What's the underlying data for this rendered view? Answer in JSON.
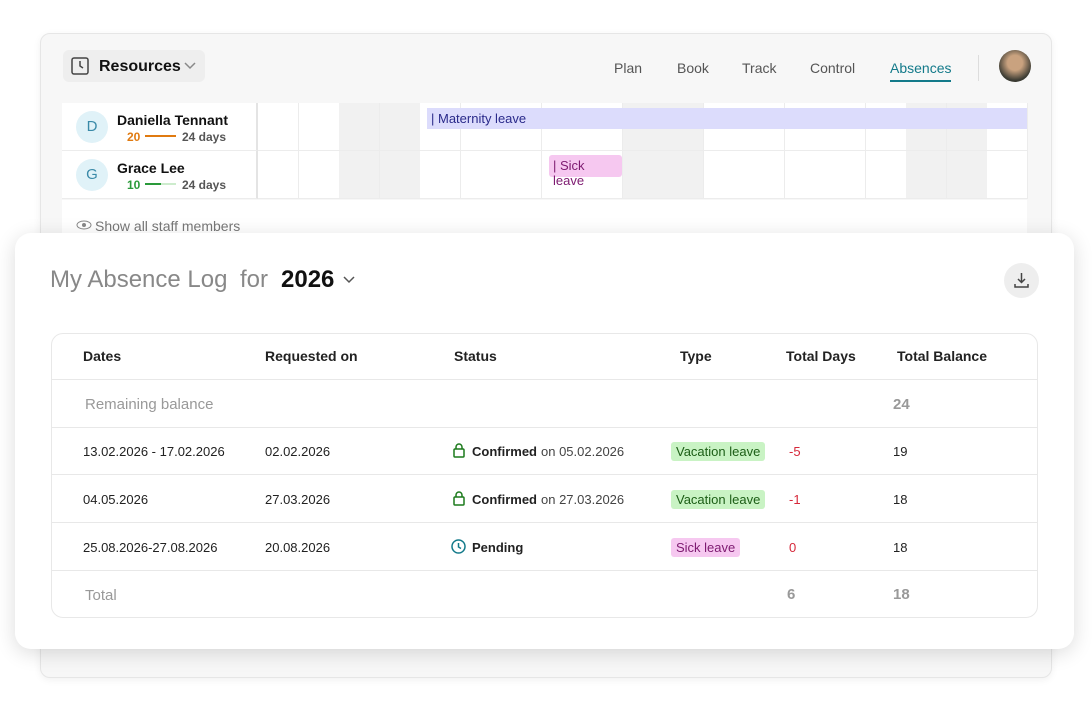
{
  "nav": {
    "brand": "Resources",
    "tabs": [
      "Plan",
      "Book",
      "Track",
      "Control",
      "Absences"
    ]
  },
  "staff": [
    {
      "initial": "D",
      "name": "Daniella Tennant",
      "used": "20",
      "total": "24 days"
    },
    {
      "initial": "G",
      "name": "Grace Lee",
      "used": "10",
      "total": "24 days"
    }
  ],
  "calendar": {
    "bars": [
      "| Maternity leave",
      "| Sick leave"
    ],
    "show_all": "Show all staff members"
  },
  "log": {
    "title": "My Absence Log",
    "for": "for",
    "year": "2026"
  },
  "table": {
    "headers": [
      "Dates",
      "Requested on",
      "Status",
      "Type",
      "Total Days",
      "Total Balance"
    ],
    "remaining": {
      "label": "Remaining balance",
      "total_balance": "24"
    },
    "rows": [
      {
        "dates": "13.02.2026 - 17.02.2026",
        "requested": "02.02.2026",
        "status": "Confirmed",
        "status_date": "on 05.02.2026",
        "type": "Vacation leave",
        "total_days": "-5",
        "total_balance": "19"
      },
      {
        "dates": "04.05.2026",
        "requested": "27.03.2026",
        "status": "Confirmed",
        "status_date": "on 27.03.2026",
        "type": "Vacation leave",
        "total_days": "-1",
        "total_balance": "18"
      },
      {
        "dates": "25.08.2026-27.08.2026",
        "requested": "20.08.2026",
        "status": "Pending",
        "type": "Sick leave",
        "total_days": "0",
        "total_balance": "18"
      }
    ],
    "total": {
      "label": "Total",
      "total_days": "6",
      "total_balance": "18"
    }
  }
}
